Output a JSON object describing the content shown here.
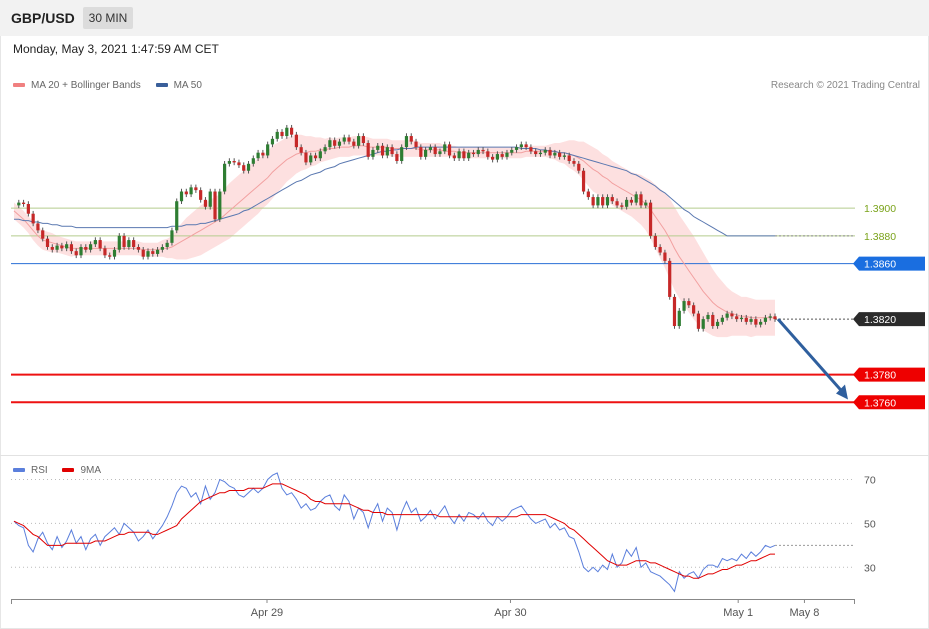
{
  "header": {
    "symbol": "GBP/USD",
    "timeframe": "30 MIN",
    "timestamp": "Monday, May 3, 2021 1:47:59 AM CET"
  },
  "credit": "Research © 2021 Trading Central",
  "legend_top": [
    {
      "label": "MA 20 + Bollinger Bands",
      "color": "#f08080"
    },
    {
      "label": "MA 50",
      "color": "#3a5f9a"
    }
  ],
  "legend_bottom": [
    {
      "label": "RSI",
      "color": "#5b7fdc"
    },
    {
      "label": "9MA",
      "color": "#e00000"
    }
  ],
  "chart_data": [
    {
      "type": "candlestick",
      "title": "GBP/USD",
      "ylim": [
        1.3722,
        1.3978
      ],
      "x_ticks": [
        {
          "label": "Apr 29",
          "at": 0.3033
        },
        {
          "label": "Apr 30",
          "at": 0.5918
        },
        {
          "label": "May 1",
          "at": 0.8616
        },
        {
          "label": "May 8",
          "at": 0.9401
        }
      ],
      "levels": [
        {
          "value": 1.39,
          "label": "1.3900",
          "style": "green"
        },
        {
          "value": 1.388,
          "label": "1.3880",
          "style": "green"
        },
        {
          "value": 1.386,
          "label": "1.3860",
          "style": "blue"
        },
        {
          "value": 1.382,
          "label": "1.3820",
          "style": "current"
        },
        {
          "value": 1.378,
          "label": "1.3780",
          "style": "red"
        },
        {
          "value": 1.376,
          "label": "1.3760",
          "style": "red"
        }
      ],
      "forecast_arrow": {
        "from": 1.382,
        "to": 1.3762
      },
      "price_path": [
        1.3902,
        1.3904,
        1.3903,
        1.3896,
        1.3889,
        1.3884,
        1.3878,
        1.3872,
        1.387,
        1.3873,
        1.3871,
        1.3874,
        1.3869,
        1.3866,
        1.3872,
        1.387,
        1.3874,
        1.3877,
        1.3871,
        1.3866,
        1.3865,
        1.387,
        1.388,
        1.3872,
        1.3877,
        1.3872,
        1.387,
        1.3865,
        1.3869,
        1.3867,
        1.387,
        1.3872,
        1.3875,
        1.3884,
        1.3905,
        1.3912,
        1.391,
        1.3915,
        1.3913,
        1.3906,
        1.3901,
        1.3912,
        1.3892,
        1.3912,
        1.3932,
        1.3934,
        1.3933,
        1.3931,
        1.3927,
        1.3932,
        1.3936,
        1.394,
        1.3938,
        1.3946,
        1.395,
        1.3955,
        1.3952,
        1.3958,
        1.3953,
        1.3944,
        1.394,
        1.3933,
        1.3938,
        1.3936,
        1.3941,
        1.3944,
        1.3949,
        1.3945,
        1.3948,
        1.3951,
        1.3948,
        1.3945,
        1.3952,
        1.3947,
        1.3937,
        1.3942,
        1.3945,
        1.3938,
        1.3944,
        1.3939,
        1.3934,
        1.3944,
        1.3952,
        1.3948,
        1.3944,
        1.3937,
        1.3942,
        1.3944,
        1.3939,
        1.3941,
        1.3946,
        1.3938,
        1.3936,
        1.3941,
        1.3936,
        1.394,
        1.3939,
        1.3942,
        1.3941,
        1.3937,
        1.3935,
        1.3939,
        1.3937,
        1.394,
        1.3942,
        1.3944,
        1.3946,
        1.3944,
        1.3941,
        1.3939,
        1.394,
        1.3942,
        1.3938,
        1.394,
        1.3937,
        1.3938,
        1.3934,
        1.3932,
        1.3927,
        1.3912,
        1.3908,
        1.3902,
        1.3908,
        1.3902,
        1.3908,
        1.3905,
        1.3902,
        1.3901,
        1.3906,
        1.3904,
        1.391,
        1.3902,
        1.3904,
        1.388,
        1.3872,
        1.3868,
        1.3862,
        1.3836,
        1.3815,
        1.3826,
        1.3833,
        1.383,
        1.3824,
        1.3813,
        1.382,
        1.3823,
        1.3815,
        1.3818,
        1.3821,
        1.3824,
        1.3822,
        1.382,
        1.3821,
        1.3818,
        1.382,
        1.3816,
        1.3818,
        1.3821,
        1.3822,
        1.382
      ],
      "ma20": [
        1.3898,
        1.3895,
        1.3892,
        1.3888,
        1.3884,
        1.388,
        1.3877,
        1.3876,
        1.3875,
        1.3874,
        1.3873,
        1.3872,
        1.3871,
        1.3871,
        1.3871,
        1.3871,
        1.3871,
        1.3871,
        1.3871,
        1.3871,
        1.3871,
        1.3871,
        1.3871,
        1.3871,
        1.3871,
        1.3871,
        1.3871,
        1.387,
        1.387,
        1.387,
        1.387,
        1.3871,
        1.3871,
        1.3872,
        1.3874,
        1.3876,
        1.3878,
        1.388,
        1.3882,
        1.3884,
        1.3886,
        1.3888,
        1.389,
        1.3892,
        1.3895,
        1.3898,
        1.3901,
        1.3904,
        1.3907,
        1.391,
        1.3913,
        1.3916,
        1.3919,
        1.3922,
        1.3926,
        1.3929,
        1.3932,
        1.3935,
        1.3937,
        1.3939,
        1.394,
        1.394,
        1.3941,
        1.3941,
        1.3942,
        1.3942,
        1.3943,
        1.3943,
        1.3944,
        1.3944,
        1.3944,
        1.3945,
        1.3945,
        1.3945,
        1.3944,
        1.3944,
        1.3944,
        1.3944,
        1.3944,
        1.3943,
        1.3943,
        1.3943,
        1.3943,
        1.3943,
        1.3943,
        1.3942,
        1.3942,
        1.3942,
        1.3942,
        1.3942,
        1.3941,
        1.3941,
        1.3941,
        1.394,
        1.394,
        1.394,
        1.394,
        1.394,
        1.394,
        1.394,
        1.394,
        1.394,
        1.394,
        1.394,
        1.394,
        1.394,
        1.394,
        1.3941,
        1.3941,
        1.3941,
        1.3941,
        1.3941,
        1.3941,
        1.3941,
        1.394,
        1.394,
        1.3939,
        1.3938,
        1.3936,
        1.3934,
        1.3931,
        1.3928,
        1.3926,
        1.3923,
        1.3921,
        1.3918,
        1.3916,
        1.3914,
        1.3912,
        1.391,
        1.3908,
        1.3906,
        1.3903,
        1.3899,
        1.3894,
        1.3889,
        1.3884,
        1.3878,
        1.3871,
        1.3865,
        1.386,
        1.3855,
        1.385,
        1.3845,
        1.384,
        1.3836,
        1.3832,
        1.3829,
        1.3827,
        1.3825,
        1.3824,
        1.3823,
        1.3822,
        1.3822,
        1.3821,
        1.3821,
        1.3821,
        1.3821,
        1.3821,
        1.3821
      ],
      "bb_width": [
        6,
        6,
        6,
        6,
        7,
        7,
        7,
        7,
        7,
        6,
        6,
        6,
        6,
        5,
        5,
        5,
        5,
        5,
        5,
        5,
        5,
        5,
        5,
        5,
        5,
        5,
        5,
        5,
        5,
        5,
        5,
        6,
        7,
        8,
        11,
        13,
        15,
        16,
        17,
        18,
        18,
        18,
        18,
        18,
        19,
        20,
        20,
        20,
        20,
        20,
        20,
        20,
        19,
        19,
        19,
        18,
        17,
        16,
        15,
        14,
        13,
        12,
        11,
        10,
        9,
        8,
        8,
        7,
        7,
        7,
        7,
        7,
        7,
        7,
        7,
        6,
        6,
        6,
        6,
        6,
        6,
        6,
        6,
        6,
        6,
        5,
        5,
        5,
        5,
        5,
        4,
        4,
        4,
        4,
        4,
        4,
        4,
        4,
        4,
        4,
        4,
        4,
        4,
        4,
        4,
        4,
        4,
        4,
        4,
        4,
        4,
        4,
        5,
        6,
        7,
        8,
        10,
        11,
        12,
        14,
        15,
        16,
        16,
        16,
        16,
        16,
        16,
        16,
        16,
        16,
        17,
        18,
        19,
        21,
        23,
        25,
        27,
        29,
        30,
        30,
        30,
        30,
        30,
        29,
        28,
        26,
        24,
        22,
        20,
        18,
        16,
        15,
        14,
        14,
        14,
        13,
        13,
        13,
        13,
        13
      ],
      "ma50": [
        1.3892,
        1.3892,
        1.3891,
        1.3891,
        1.389,
        1.389,
        1.3889,
        1.3889,
        1.3888,
        1.3888,
        1.3887,
        1.3887,
        1.3887,
        1.3886,
        1.3886,
        1.3886,
        1.3886,
        1.3886,
        1.3886,
        1.3886,
        1.3886,
        1.3886,
        1.3886,
        1.3886,
        1.3886,
        1.3886,
        1.3886,
        1.3886,
        1.3886,
        1.3886,
        1.3886,
        1.3886,
        1.3886,
        1.3887,
        1.3887,
        1.3887,
        1.3888,
        1.3888,
        1.3888,
        1.3889,
        1.3889,
        1.389,
        1.3891,
        1.3892,
        1.3893,
        1.3894,
        1.3895,
        1.3896,
        1.3898,
        1.3899,
        1.3901,
        1.3903,
        1.3905,
        1.3907,
        1.3909,
        1.3911,
        1.3913,
        1.3915,
        1.3917,
        1.3919,
        1.392,
        1.3922,
        1.3924,
        1.3925,
        1.3926,
        1.3928,
        1.3929,
        1.393,
        1.3932,
        1.3933,
        1.3934,
        1.3935,
        1.3936,
        1.3937,
        1.3938,
        1.3939,
        1.394,
        1.3941,
        1.3941,
        1.3942,
        1.3942,
        1.3943,
        1.3943,
        1.3943,
        1.3944,
        1.3944,
        1.3944,
        1.3944,
        1.3944,
        1.3944,
        1.3944,
        1.3944,
        1.3944,
        1.3944,
        1.3944,
        1.3944,
        1.3944,
        1.3944,
        1.3944,
        1.3944,
        1.3944,
        1.3944,
        1.3944,
        1.3944,
        1.3944,
        1.3944,
        1.3943,
        1.3943,
        1.3943,
        1.3943,
        1.3942,
        1.3942,
        1.3941,
        1.3941,
        1.394,
        1.394,
        1.3939,
        1.3938,
        1.3937,
        1.3936,
        1.3935,
        1.3934,
        1.3933,
        1.3932,
        1.3931,
        1.393,
        1.3929,
        1.3928,
        1.3927,
        1.3925,
        1.3924,
        1.3922,
        1.392,
        1.3918,
        1.3916,
        1.3913,
        1.3911,
        1.3908,
        1.3905,
        1.3902,
        1.3899,
        1.3897,
        1.3894,
        1.3892,
        1.389,
        1.3888,
        1.3886,
        1.3884,
        1.3882,
        1.388,
        1.388,
        1.388,
        1.388,
        1.388,
        1.388,
        1.388,
        1.388,
        1.388,
        1.388,
        1.388
      ]
    },
    {
      "type": "line",
      "title": "RSI",
      "ylim": [
        16,
        78
      ],
      "y_ticks": [
        70,
        50,
        30
      ],
      "series": [
        {
          "name": "RSI",
          "color": "#5b7fdc",
          "values": [
            51,
            49,
            48,
            40,
            37,
            43,
            46,
            41,
            38,
            44,
            39,
            42,
            47,
            41,
            44,
            38,
            43,
            45,
            40,
            44,
            46,
            48,
            45,
            50,
            48,
            46,
            42,
            44,
            47,
            43,
            46,
            49,
            53,
            58,
            64,
            67,
            66,
            62,
            64,
            59,
            67,
            61,
            64,
            70,
            69,
            67,
            66,
            63,
            62,
            64,
            66,
            64,
            66,
            70,
            72,
            73,
            66,
            63,
            64,
            61,
            57,
            59,
            56,
            57,
            60,
            62,
            63,
            58,
            56,
            63,
            60,
            52,
            57,
            55,
            48,
            55,
            59,
            51,
            57,
            55,
            47,
            55,
            60,
            55,
            57,
            51,
            53,
            56,
            52,
            55,
            58,
            53,
            50,
            54,
            51,
            55,
            54,
            52,
            55,
            51,
            49,
            53,
            51,
            53,
            56,
            57,
            58,
            55,
            52,
            50,
            51,
            52,
            48,
            50,
            47,
            48,
            44,
            43,
            37,
            30,
            28,
            30,
            28,
            31,
            29,
            36,
            30,
            32,
            38,
            35,
            39,
            30,
            32,
            28,
            27,
            26,
            24,
            22,
            19,
            28,
            25,
            27,
            28,
            25,
            29,
            31,
            31,
            30,
            34,
            33,
            34,
            33,
            36,
            34,
            37,
            35,
            37,
            40,
            39,
            40
          ]
        },
        {
          "name": "9MA",
          "color": "#e00000",
          "values": [
            51,
            50,
            49,
            47,
            45,
            44,
            42,
            40,
            40,
            40,
            40,
            41,
            41,
            41,
            41,
            41,
            41,
            42,
            42,
            42,
            43,
            44,
            45,
            45,
            46,
            46,
            46,
            46,
            46,
            45,
            45,
            46,
            47,
            48,
            49,
            52,
            54,
            56,
            58,
            60,
            61,
            62,
            63,
            64,
            64,
            65,
            65,
            65,
            65,
            66,
            66,
            66,
            66,
            67,
            68,
            68,
            68,
            67,
            66,
            65,
            64,
            63,
            61,
            60,
            60,
            59,
            59,
            59,
            59,
            59,
            59,
            58,
            57,
            56,
            56,
            55,
            55,
            55,
            54,
            54,
            54,
            54,
            54,
            54,
            54,
            54,
            54,
            54,
            54,
            53,
            53,
            53,
            53,
            53,
            53,
            53,
            53,
            53,
            53,
            53,
            53,
            53,
            53,
            53,
            53,
            53,
            54,
            54,
            54,
            54,
            54,
            54,
            53,
            52,
            51,
            50,
            48,
            47,
            45,
            43,
            41,
            39,
            37,
            35,
            33,
            32,
            31,
            31,
            31,
            32,
            33,
            33,
            33,
            32,
            32,
            31,
            30,
            29,
            28,
            27,
            26,
            26,
            25,
            25,
            26,
            27,
            27,
            28,
            29,
            29,
            30,
            31,
            31,
            32,
            33,
            33,
            34,
            35,
            36,
            36
          ]
        }
      ]
    }
  ]
}
